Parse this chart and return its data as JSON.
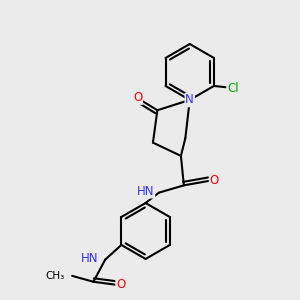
{
  "background_color": "#ebebeb",
  "atom_colors": {
    "C": "#000000",
    "N": "#3333ff",
    "O": "#ff0000",
    "Cl": "#00aa00",
    "H": "#6aabab"
  },
  "bond_color": "#000000",
  "bond_lw": 1.5,
  "font_size_atom": 8.5,
  "font_size_small": 7.5,
  "xlim": [
    0,
    10
  ],
  "ylim": [
    0,
    10
  ]
}
